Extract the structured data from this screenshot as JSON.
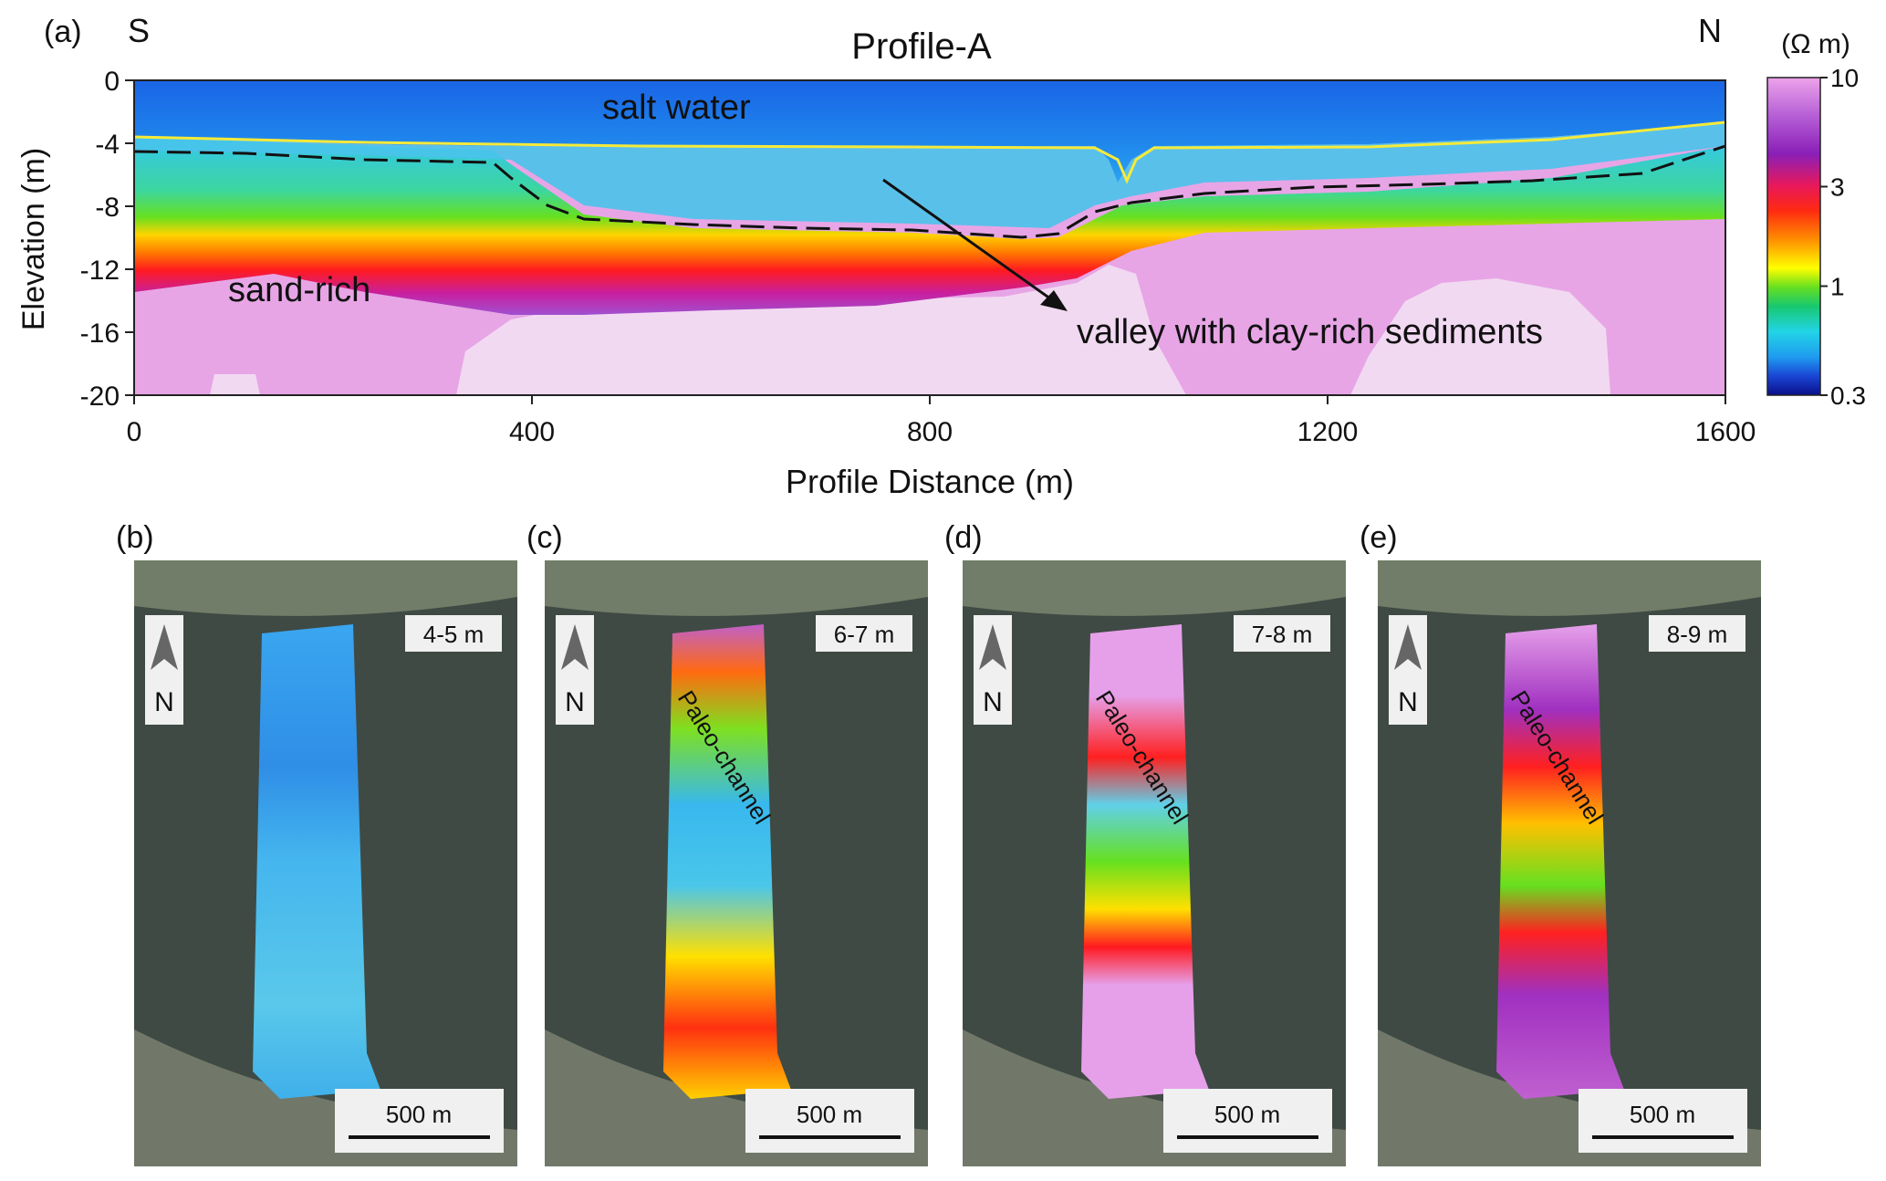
{
  "panel_a": {
    "label": "(a)",
    "title": "Profile-A",
    "left_dir": "S",
    "right_dir": "N",
    "xlabel": "Profile Distance (m)",
    "ylabel": "Elevation (m)",
    "x_ticks": [
      "0",
      "400",
      "800",
      "1200",
      "1600"
    ],
    "y_ticks": [
      "0",
      "-4",
      "-8",
      "-12",
      "-16",
      "-20"
    ],
    "annotations": {
      "salt_water": "salt water",
      "sand_rich": "sand-rich",
      "valley": "valley with clay-rich sediments"
    },
    "colorbar": {
      "unit": "(Ω m)",
      "ticks": [
        "10",
        "3",
        "1",
        "0.3"
      ]
    }
  },
  "maps": [
    {
      "label": "(b)",
      "depth": "4-5 m",
      "scale": "500 m",
      "north": "N",
      "channel": ""
    },
    {
      "label": "(c)",
      "depth": "6-7 m",
      "scale": "500 m",
      "north": "N",
      "channel": "Paleo-channel"
    },
    {
      "label": "(d)",
      "depth": "7-8 m",
      "scale": "500 m",
      "north": "N",
      "channel": "Paleo-channel"
    },
    {
      "label": "(e)",
      "depth": "8-9 m",
      "scale": "500 m",
      "north": "N",
      "channel": "Paleo-channel"
    }
  ],
  "chart_data": {
    "type": "heatmap",
    "title": "Profile-A",
    "xlabel": "Profile Distance (m)",
    "ylabel": "Elevation (m)",
    "xlim": [
      0,
      1600
    ],
    "ylim": [
      -20,
      0
    ],
    "colorbar": {
      "unit": "Ω m",
      "scale": "log",
      "range": [
        0.3,
        10
      ]
    },
    "seafloor_line": {
      "x": [
        0,
        200,
        400,
        600,
        800,
        950,
        990,
        1030,
        1200,
        1400,
        1600
      ],
      "y": [
        -3.6,
        -3.8,
        -3.9,
        -4.0,
        -4.0,
        -4.4,
        -6.5,
        -4.4,
        -4.3,
        -4.0,
        -2.8
      ]
    },
    "clay_boundary_line": {
      "x": [
        0,
        200,
        360,
        420,
        500,
        650,
        800,
        880,
        940,
        1000,
        1100,
        1250,
        1400,
        1500,
        1600
      ],
      "y": [
        -4.5,
        -5.0,
        -5.2,
        -7.5,
        -9.0,
        -9.5,
        -9.8,
        -9.5,
        -8.0,
        -7.5,
        -6.5,
        -6.3,
        -6.0,
        -5.8,
        -4.2
      ]
    }
  }
}
